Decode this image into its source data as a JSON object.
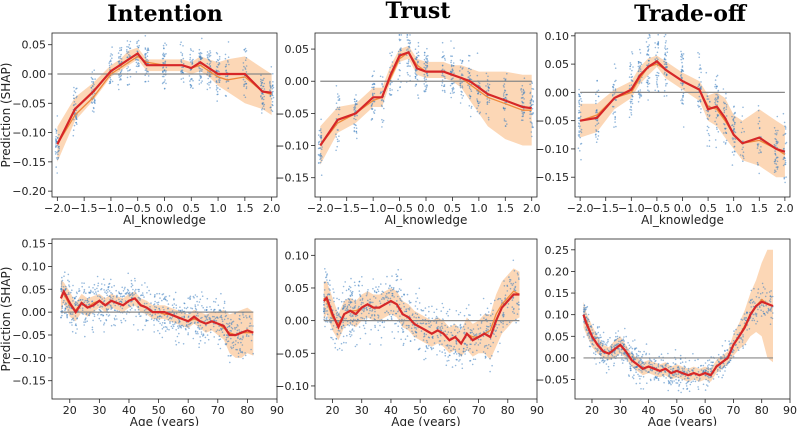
{
  "column_titles": [
    "Intention",
    "Trust",
    "Trade-off"
  ],
  "colors": {
    "scatter": "#3a7dbf",
    "band": "#f9b77a",
    "pd_line": "#f08a3c",
    "mean_line": "#d62728",
    "zero_line": "#888888"
  },
  "chart_data": [
    {
      "type": "scatter",
      "id": "intention-knowledge",
      "title": "Intention",
      "xlabel": "AI_knowledge",
      "ylabel": "Prediction (SHAP)",
      "xlim": [
        -2.1,
        2.1
      ],
      "ylim": [
        -0.21,
        0.07
      ],
      "xticks": [
        -2.0,
        -1.5,
        -1.0,
        -0.5,
        0.0,
        0.5,
        1.0,
        1.5,
        2.0
      ],
      "xtick_labels": [
        "−2.0",
        "−1.5",
        "−1.0",
        "−0.5",
        "0.0",
        "0.5",
        "1.0",
        "1.5",
        "2.0"
      ],
      "yticks": [
        0.05,
        0.0,
        -0.05,
        -0.1,
        -0.15,
        -0.2
      ],
      "ytick_labels": [
        "0.05",
        "0.00",
        "−0.05",
        "−0.10",
        "−0.15",
        "−0.20"
      ],
      "mean_x": [
        -2.0,
        -1.67,
        -1.33,
        -1.0,
        -0.83,
        -0.67,
        -0.5,
        -0.33,
        0.0,
        0.33,
        0.5,
        0.67,
        0.83,
        1.0,
        1.17,
        1.5,
        1.83,
        2.0
      ],
      "mean_y": [
        -0.12,
        -0.06,
        -0.03,
        0.005,
        0.015,
        0.025,
        0.035,
        0.015,
        0.015,
        0.015,
        0.01,
        0.02,
        0.01,
        0.0,
        0.0,
        0.0,
        -0.03,
        -0.032
      ],
      "band_low": [
        -0.15,
        -0.08,
        -0.045,
        -0.005,
        0.005,
        0.015,
        0.025,
        0.005,
        0.005,
        0.005,
        0.0,
        0.005,
        -0.005,
        -0.02,
        -0.03,
        -0.05,
        -0.06,
        -0.07
      ],
      "band_high": [
        -0.09,
        -0.04,
        -0.015,
        0.015,
        0.025,
        0.04,
        0.045,
        0.025,
        0.025,
        0.025,
        0.02,
        0.03,
        0.025,
        0.02,
        0.025,
        0.03,
        0.01,
        0.0
      ],
      "pd_y": [
        -0.12,
        -0.07,
        -0.04,
        0.0,
        0.01,
        0.02,
        0.03,
        0.02,
        0.015,
        0.015,
        0.01,
        0.015,
        0.005,
        -0.005,
        -0.01,
        -0.005,
        -0.03,
        -0.035
      ],
      "spread": 0.02
    },
    {
      "type": "scatter",
      "id": "trust-knowledge",
      "title": "Trust",
      "xlabel": "AI_knowledge",
      "ylabel": "",
      "xlim": [
        -2.1,
        2.1
      ],
      "ylim": [
        -0.18,
        0.075
      ],
      "xticks": [
        -2.0,
        -1.5,
        -1.0,
        -0.5,
        0.0,
        0.5,
        1.0,
        1.5,
        2.0
      ],
      "xtick_labels": [
        "−2.0",
        "−1.5",
        "−1.0",
        "−0.5",
        "0.0",
        "0.5",
        "1.0",
        "1.5",
        "2.0"
      ],
      "yticks": [
        0.05,
        0.0,
        -0.05,
        -0.1,
        -0.15
      ],
      "ytick_labels": [
        "0.05",
        "0.00",
        "−0.05",
        "−0.10",
        "−0.15"
      ],
      "mean_x": [
        -2.0,
        -1.67,
        -1.33,
        -1.0,
        -0.83,
        -0.67,
        -0.5,
        -0.33,
        -0.17,
        0.0,
        0.33,
        0.5,
        0.67,
        0.83,
        1.0,
        1.17,
        1.5,
        1.83,
        2.0
      ],
      "mean_y": [
        -0.1,
        -0.06,
        -0.05,
        -0.025,
        -0.025,
        0.01,
        0.04,
        0.045,
        0.02,
        0.015,
        0.015,
        0.01,
        0.005,
        0.0,
        -0.01,
        -0.02,
        -0.03,
        -0.04,
        -0.042
      ],
      "band_low": [
        -0.13,
        -0.08,
        -0.065,
        -0.04,
        -0.04,
        0.0,
        0.03,
        0.035,
        0.01,
        0.005,
        0.005,
        0.0,
        -0.01,
        -0.03,
        -0.05,
        -0.07,
        -0.09,
        -0.1,
        -0.1
      ],
      "band_high": [
        -0.07,
        -0.04,
        -0.035,
        -0.01,
        -0.01,
        0.025,
        0.05,
        0.055,
        0.035,
        0.03,
        0.03,
        0.025,
        0.025,
        0.02,
        0.015,
        0.015,
        0.015,
        0.01,
        0.01
      ],
      "pd_y": [
        -0.1,
        -0.065,
        -0.05,
        -0.03,
        -0.025,
        0.005,
        0.035,
        0.045,
        0.025,
        0.015,
        0.015,
        0.01,
        0.005,
        -0.005,
        -0.015,
        -0.025,
        -0.035,
        -0.045,
        -0.045
      ],
      "spread": 0.02
    },
    {
      "type": "scatter",
      "id": "tradeoff-knowledge",
      "title": "Trade-off",
      "xlabel": "AI_knowledge",
      "ylabel": "",
      "xlim": [
        -2.1,
        2.1
      ],
      "ylim": [
        -0.185,
        0.105
      ],
      "xticks": [
        -2.0,
        -1.5,
        -1.0,
        -0.5,
        0.0,
        0.5,
        1.0,
        1.5,
        2.0
      ],
      "xtick_labels": [
        "−2.0",
        "−1.5",
        "−1.0",
        "−0.5",
        "0.0",
        "0.5",
        "1.0",
        "1.5",
        "2.0"
      ],
      "yticks": [
        0.1,
        0.05,
        0.0,
        -0.05,
        -0.1,
        -0.15
      ],
      "ytick_labels": [
        "0.10",
        "0.05",
        "0.00",
        "−0.05",
        "−0.10",
        "−0.15"
      ],
      "mean_x": [
        -2.0,
        -1.67,
        -1.33,
        -1.0,
        -0.83,
        -0.67,
        -0.5,
        -0.33,
        0.0,
        0.33,
        0.5,
        0.67,
        0.83,
        1.0,
        1.17,
        1.5,
        1.83,
        2.0
      ],
      "mean_y": [
        -0.05,
        -0.045,
        -0.01,
        0.005,
        0.03,
        0.045,
        0.055,
        0.04,
        0.02,
        0.005,
        -0.03,
        -0.025,
        -0.045,
        -0.075,
        -0.09,
        -0.08,
        -0.1,
        -0.105
      ],
      "band_low": [
        -0.08,
        -0.07,
        -0.03,
        -0.01,
        0.015,
        0.03,
        0.045,
        0.025,
        0.005,
        -0.015,
        -0.05,
        -0.06,
        -0.08,
        -0.1,
        -0.12,
        -0.13,
        -0.15,
        -0.15
      ],
      "band_high": [
        -0.02,
        -0.02,
        0.005,
        0.02,
        0.045,
        0.06,
        0.065,
        0.055,
        0.035,
        0.02,
        -0.005,
        0.0,
        -0.01,
        -0.04,
        -0.05,
        -0.03,
        -0.05,
        -0.06
      ],
      "pd_y": [
        -0.05,
        -0.04,
        -0.01,
        0.0,
        0.025,
        0.045,
        0.05,
        0.04,
        0.02,
        0.005,
        -0.025,
        -0.03,
        -0.05,
        -0.075,
        -0.09,
        -0.085,
        -0.1,
        -0.11
      ],
      "spread": 0.028
    },
    {
      "type": "scatter",
      "id": "intention-age",
      "title": "",
      "xlabel": "Age (years)",
      "ylabel": "Prediction (SHAP)",
      "xlim": [
        14,
        90
      ],
      "ylim": [
        -0.19,
        0.16
      ],
      "xticks": [
        20,
        30,
        40,
        50,
        60,
        70,
        80,
        90
      ],
      "xtick_labels": [
        "20",
        "30",
        "40",
        "50",
        "60",
        "70",
        "80",
        "90"
      ],
      "yticks": [
        0.15,
        0.1,
        0.05,
        0.0,
        -0.05,
        -0.1,
        -0.15
      ],
      "ytick_labels": [
        "0.15",
        "0.10",
        "0.05",
        "0.00",
        "−0.05",
        "−0.10",
        "−0.15"
      ],
      "mean_x": [
        17,
        18,
        20,
        22,
        24,
        26,
        28,
        30,
        32,
        34,
        36,
        38,
        40,
        42,
        44,
        46,
        48,
        50,
        52,
        54,
        56,
        58,
        60,
        62,
        64,
        66,
        68,
        70,
        72,
        74,
        76,
        78,
        80,
        82
      ],
      "mean_y": [
        0.03,
        0.045,
        0.02,
        0.0,
        0.02,
        0.01,
        0.015,
        0.025,
        0.015,
        0.025,
        0.02,
        0.015,
        0.025,
        0.03,
        0.015,
        0.01,
        0.0,
        0.0,
        0.0,
        -0.005,
        -0.01,
        -0.015,
        -0.02,
        -0.01,
        -0.02,
        -0.025,
        -0.02,
        -0.025,
        -0.03,
        -0.05,
        -0.05,
        -0.045,
        -0.04,
        -0.045
      ],
      "band_low": [
        0.0,
        0.02,
        -0.01,
        -0.02,
        0.0,
        -0.01,
        0.0,
        0.01,
        0.0,
        0.01,
        0.005,
        0.0,
        0.01,
        0.015,
        0.0,
        -0.005,
        -0.015,
        -0.015,
        -0.015,
        -0.02,
        -0.025,
        -0.03,
        -0.035,
        -0.025,
        -0.035,
        -0.045,
        -0.04,
        -0.05,
        -0.06,
        -0.09,
        -0.1,
        -0.1,
        -0.09,
        -0.095
      ],
      "band_high": [
        0.07,
        0.065,
        0.045,
        0.02,
        0.04,
        0.03,
        0.035,
        0.04,
        0.03,
        0.04,
        0.035,
        0.03,
        0.04,
        0.045,
        0.03,
        0.025,
        0.015,
        0.015,
        0.015,
        0.01,
        0.005,
        0.0,
        -0.005,
        0.005,
        0.0,
        -0.005,
        0.0,
        0.0,
        0.005,
        -0.005,
        0.0,
        0.005,
        0.01,
        0.0
      ],
      "pd_y": [
        0.035,
        0.04,
        0.015,
        0.005,
        0.02,
        0.01,
        0.02,
        0.025,
        0.015,
        0.025,
        0.02,
        0.015,
        0.025,
        0.03,
        0.015,
        0.01,
        0.0,
        0.0,
        -0.005,
        -0.005,
        -0.01,
        -0.015,
        -0.02,
        -0.015,
        -0.02,
        -0.025,
        -0.02,
        -0.025,
        -0.035,
        -0.045,
        -0.05,
        -0.045,
        -0.045,
        -0.045
      ],
      "spread": 0.025
    },
    {
      "type": "scatter",
      "id": "trust-age",
      "title": "",
      "xlabel": "Age (years)",
      "ylabel": "",
      "xlim": [
        14,
        90
      ],
      "ylim": [
        -0.12,
        0.125
      ],
      "xticks": [
        20,
        30,
        40,
        50,
        60,
        70,
        80,
        90
      ],
      "xtick_labels": [
        "20",
        "30",
        "40",
        "50",
        "60",
        "70",
        "80",
        "90"
      ],
      "yticks": [
        0.1,
        0.05,
        0.0,
        -0.05,
        -0.1
      ],
      "ytick_labels": [
        "0.10",
        "0.05",
        "0.00",
        "−0.05",
        "−0.10"
      ],
      "mean_x": [
        17,
        18,
        20,
        22,
        24,
        26,
        28,
        30,
        32,
        34,
        36,
        38,
        40,
        42,
        44,
        46,
        48,
        50,
        52,
        54,
        56,
        58,
        60,
        62,
        64,
        66,
        68,
        70,
        72,
        74,
        76,
        78,
        80,
        82,
        84
      ],
      "mean_y": [
        0.03,
        0.035,
        0.01,
        -0.01,
        0.01,
        0.015,
        0.01,
        0.02,
        0.025,
        0.02,
        0.02,
        0.025,
        0.03,
        0.025,
        0.01,
        0.005,
        -0.005,
        -0.01,
        -0.015,
        -0.02,
        -0.015,
        -0.02,
        -0.03,
        -0.025,
        -0.035,
        -0.02,
        -0.03,
        -0.025,
        -0.02,
        -0.025,
        0.0,
        0.02,
        0.03,
        0.04,
        0.04
      ],
      "band_low": [
        0.0,
        0.01,
        -0.015,
        -0.03,
        -0.01,
        -0.005,
        -0.01,
        0.0,
        0.005,
        0.0,
        0.0,
        0.005,
        0.01,
        0.005,
        -0.01,
        -0.015,
        -0.025,
        -0.03,
        -0.035,
        -0.04,
        -0.035,
        -0.04,
        -0.05,
        -0.045,
        -0.055,
        -0.045,
        -0.055,
        -0.05,
        -0.05,
        -0.06,
        -0.04,
        -0.02,
        -0.01,
        0.0,
        0.005
      ],
      "band_high": [
        0.06,
        0.06,
        0.035,
        0.01,
        0.03,
        0.035,
        0.03,
        0.04,
        0.045,
        0.04,
        0.04,
        0.045,
        0.05,
        0.045,
        0.03,
        0.025,
        0.015,
        0.01,
        0.005,
        0.0,
        0.005,
        0.0,
        -0.01,
        -0.005,
        -0.015,
        0.005,
        -0.005,
        0.0,
        0.01,
        0.01,
        0.04,
        0.06,
        0.07,
        0.08,
        0.075
      ],
      "pd_y": [
        0.035,
        0.03,
        0.005,
        -0.005,
        0.01,
        0.015,
        0.015,
        0.02,
        0.025,
        0.02,
        0.02,
        0.025,
        0.03,
        0.025,
        0.01,
        0.005,
        -0.005,
        -0.01,
        -0.015,
        -0.02,
        -0.015,
        -0.02,
        -0.03,
        -0.025,
        -0.035,
        -0.02,
        -0.025,
        -0.025,
        -0.02,
        -0.015,
        0.01,
        0.025,
        0.035,
        0.045,
        0.04
      ],
      "spread": 0.022
    },
    {
      "type": "scatter",
      "id": "tradeoff-age",
      "title": "",
      "xlabel": "Age (years)",
      "ylabel": "",
      "xlim": [
        14,
        90
      ],
      "ylim": [
        -0.095,
        0.275
      ],
      "xticks": [
        20,
        30,
        40,
        50,
        60,
        70,
        80,
        90
      ],
      "xtick_labels": [
        "20",
        "30",
        "40",
        "50",
        "60",
        "70",
        "80",
        "90"
      ],
      "yticks": [
        0.25,
        0.2,
        0.15,
        0.1,
        0.05,
        0.0,
        -0.05
      ],
      "ytick_labels": [
        "0.25",
        "0.20",
        "0.15",
        "0.10",
        "0.05",
        "0.00",
        "−0.05"
      ],
      "mean_x": [
        17,
        18,
        20,
        22,
        24,
        26,
        28,
        30,
        32,
        34,
        36,
        38,
        40,
        42,
        44,
        46,
        48,
        50,
        52,
        54,
        56,
        58,
        60,
        62,
        64,
        66,
        68,
        70,
        72,
        74,
        76,
        78,
        80,
        82,
        84
      ],
      "mean_y": [
        0.1,
        0.08,
        0.05,
        0.03,
        0.015,
        0.01,
        0.02,
        0.03,
        0.015,
        -0.005,
        -0.015,
        -0.025,
        -0.02,
        -0.025,
        -0.03,
        -0.025,
        -0.035,
        -0.03,
        -0.035,
        -0.04,
        -0.035,
        -0.04,
        -0.035,
        -0.04,
        -0.02,
        -0.01,
        0.0,
        0.03,
        0.05,
        0.07,
        0.1,
        0.12,
        0.13,
        0.125,
        0.12
      ],
      "band_low": [
        0.07,
        0.055,
        0.025,
        0.01,
        0.0,
        -0.005,
        0.0,
        0.01,
        0.0,
        -0.02,
        -0.03,
        -0.04,
        -0.035,
        -0.04,
        -0.045,
        -0.04,
        -0.05,
        -0.045,
        -0.05,
        -0.055,
        -0.05,
        -0.055,
        -0.05,
        -0.055,
        -0.035,
        -0.025,
        -0.015,
        0.005,
        0.02,
        0.03,
        0.05,
        0.06,
        0.05,
        0.0,
        -0.01
      ],
      "band_high": [
        0.13,
        0.105,
        0.075,
        0.05,
        0.03,
        0.025,
        0.04,
        0.05,
        0.03,
        0.01,
        0.0,
        -0.01,
        -0.005,
        -0.01,
        -0.015,
        -0.01,
        -0.02,
        -0.015,
        -0.02,
        -0.025,
        -0.02,
        -0.025,
        -0.02,
        -0.025,
        -0.005,
        0.005,
        0.015,
        0.055,
        0.08,
        0.11,
        0.15,
        0.18,
        0.22,
        0.25,
        0.25
      ],
      "pd_y": [
        0.1,
        0.085,
        0.05,
        0.03,
        0.015,
        0.01,
        0.02,
        0.03,
        0.015,
        -0.005,
        -0.015,
        -0.025,
        -0.02,
        -0.025,
        -0.03,
        -0.025,
        -0.035,
        -0.03,
        -0.035,
        -0.04,
        -0.035,
        -0.04,
        -0.035,
        -0.04,
        -0.02,
        -0.01,
        0.0,
        0.03,
        0.05,
        0.075,
        0.1,
        0.12,
        0.135,
        0.125,
        0.12
      ],
      "spread": 0.02
    }
  ]
}
